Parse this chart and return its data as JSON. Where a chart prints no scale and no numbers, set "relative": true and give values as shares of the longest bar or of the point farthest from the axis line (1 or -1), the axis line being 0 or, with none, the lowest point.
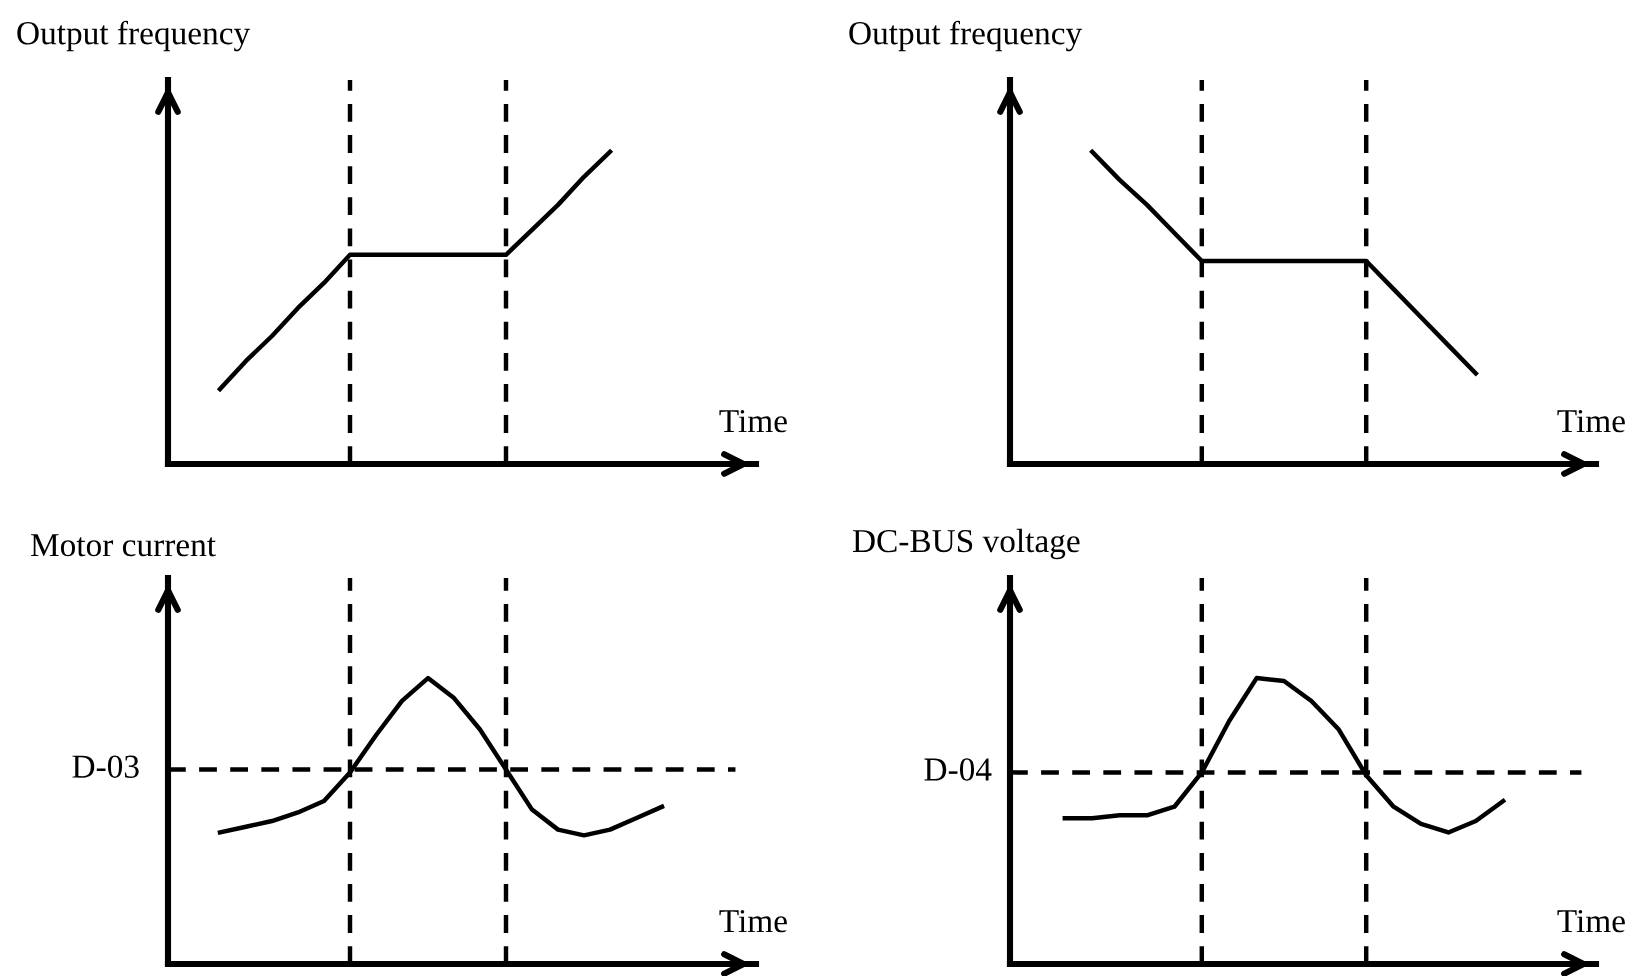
{
  "chart_data": [
    {
      "type": "line",
      "ylabel": "Output frequency",
      "xlabel": "Time",
      "relative": true,
      "line_style": "solid",
      "categories": [
        null,
        null,
        null,
        null,
        null,
        null,
        null,
        null,
        null,
        null,
        null,
        null,
        null,
        null,
        null,
        null,
        null,
        null,
        null,
        null,
        null,
        null,
        null
      ],
      "series": [
        {
          "color": "#000000",
          "values": [
            null,
            null,
            0.24,
            0.33,
            0.41,
            0.5,
            0.58,
            0.67,
            0.67,
            0.67,
            0.67,
            0.67,
            0.67,
            0.67,
            0.75,
            0.83,
            0.92,
            1.0,
            null,
            null,
            null,
            null,
            null
          ]
        }
      ]
    },
    {
      "type": "line",
      "ylabel": "Output frequency",
      "xlabel": "Time",
      "relative": true,
      "line_style": "solid",
      "categories": [
        null,
        null,
        null,
        null,
        null,
        null,
        null,
        null,
        null,
        null,
        null,
        null,
        null,
        null,
        null,
        null,
        null,
        null,
        null,
        null,
        null,
        null
      ],
      "series": [
        {
          "color": "#000000",
          "values": [
            null,
            null,
            null,
            1.0,
            0.91,
            0.83,
            0.74,
            0.65,
            0.65,
            0.65,
            0.65,
            0.65,
            0.65,
            0.65,
            0.56,
            0.47,
            0.38,
            0.29,
            null,
            null,
            null,
            null
          ]
        }
      ]
    },
    {
      "type": "line",
      "ylabel": "Motor current",
      "xlabel": "Time",
      "relative": true,
      "line_style": "solid",
      "categories": [
        null,
        null,
        null,
        null,
        null,
        null,
        null,
        null,
        null,
        null,
        null,
        null,
        null,
        null,
        null,
        null,
        null,
        null,
        null,
        null,
        null,
        null,
        null
      ],
      "series": [
        {
          "color": "#000000",
          "values": [
            null,
            null,
            0.46,
            0.48,
            0.5,
            0.53,
            0.57,
            0.67,
            0.8,
            0.92,
            1.0,
            0.93,
            0.82,
            0.68,
            0.54,
            0.47,
            0.45,
            0.47,
            0.51,
            0.55,
            null,
            null,
            null
          ]
        }
      ],
      "ref_lines": [
        {
          "axis": "y",
          "value": 0.68,
          "label": "D-03",
          "line_style": "dashed",
          "color": "#000000"
        }
      ]
    },
    {
      "type": "line",
      "ylabel": "DC-BUS voltage",
      "xlabel": "Time",
      "relative": true,
      "line_style": "solid",
      "categories": [
        null,
        null,
        null,
        null,
        null,
        null,
        null,
        null,
        null,
        null,
        null,
        null,
        null,
        null,
        null,
        null,
        null,
        null,
        null,
        null,
        null,
        null
      ],
      "series": [
        {
          "color": "#000000",
          "values": [
            null,
            null,
            0.51,
            0.51,
            0.52,
            0.52,
            0.55,
            0.67,
            0.85,
            1.0,
            0.99,
            0.92,
            0.82,
            0.66,
            0.55,
            0.49,
            0.46,
            0.5,
            0.57,
            null,
            null,
            null
          ]
        }
      ],
      "ref_lines": [
        {
          "axis": "y",
          "value": 0.67,
          "label": "D-04",
          "line_style": "dashed",
          "color": "#000000"
        }
      ]
    }
  ]
}
